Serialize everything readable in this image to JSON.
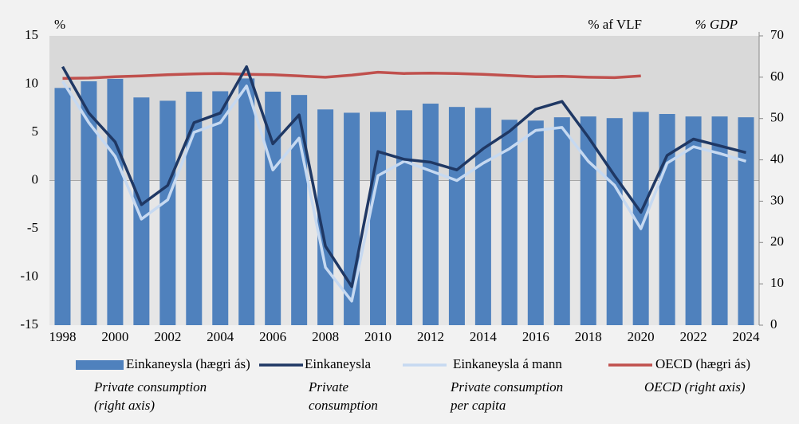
{
  "chart_data": {
    "type": "bar-line",
    "left_unit": "%",
    "right_unit_is": "% af VLF",
    "right_unit_en": "% GDP",
    "categories": [
      "1998",
      null,
      "2000",
      null,
      "2002",
      null,
      "2004",
      null,
      "2006",
      null,
      "2008",
      null,
      "2010",
      null,
      "2012",
      null,
      "2014",
      null,
      "2016",
      null,
      "2018",
      null,
      "2020",
      null,
      "2022",
      null,
      "2024"
    ],
    "ylim": [
      -15,
      15
    ],
    "yticks": [
      -15,
      -10,
      -5,
      0,
      5,
      10,
      15
    ],
    "y2lim": [
      0,
      70
    ],
    "y2ticks": [
      0,
      10,
      20,
      30,
      40,
      50,
      60,
      70
    ],
    "series": [
      {
        "name": "Einkaneysla (hægri ás)",
        "subtitle": [
          "Private consumption",
          "(right axis)"
        ],
        "kind": "bar",
        "axis": "y2",
        "color": "#4f81bd",
        "values": [
          57.4,
          59,
          59.6,
          55.1,
          54.3,
          56.5,
          56.6,
          59.7,
          56.5,
          55.7,
          52.2,
          51.4,
          51.6,
          52,
          53.6,
          52.8,
          52.6,
          49.7,
          49.5,
          50.3,
          50.5,
          50.1,
          51.6,
          51.1,
          50.5,
          50.5,
          50.3
        ]
      },
      {
        "name": "Einkaneysla",
        "subtitle": [
          "Private",
          "consumption"
        ],
        "kind": "line",
        "axis": "y",
        "color": "#1f3864",
        "values": [
          11.8,
          7,
          4,
          -2.5,
          -0.5,
          6,
          7,
          11.8,
          3.8,
          6.8,
          -6.8,
          -11,
          3,
          2.2,
          1.9,
          1.1,
          3.3,
          5.1,
          7.4,
          8.2,
          4.5,
          0.5,
          -3.3,
          2.6,
          4.3,
          3.6,
          2.9
        ]
      },
      {
        "name": "Einkaneysla á mann",
        "subtitle": [
          "Private consumption",
          "per capita"
        ],
        "kind": "line",
        "axis": "y",
        "color": "#c6d9f1",
        "values": [
          10.3,
          6,
          2.5,
          -4,
          -2,
          5,
          6,
          9.8,
          1.1,
          4.4,
          -9,
          -12.5,
          0.5,
          2,
          1,
          0,
          1.8,
          3.3,
          5.2,
          5.5,
          2,
          -0.5,
          -5,
          1.8,
          3.5,
          2.8,
          2
        ]
      },
      {
        "name": "OECD (hægri ás)",
        "subtitle": [
          "OECD (right axis)"
        ],
        "kind": "line",
        "axis": "y2",
        "color": "#c0504d",
        "values": [
          59.7,
          59.8,
          60.1,
          60.3,
          60.6,
          60.8,
          60.9,
          60.7,
          60.6,
          60.3,
          60,
          60.5,
          61.2,
          60.9,
          61,
          60.9,
          60.7,
          60.4,
          60.1,
          60.2,
          60,
          59.9,
          60.3,
          null,
          null,
          null,
          null
        ]
      }
    ]
  }
}
